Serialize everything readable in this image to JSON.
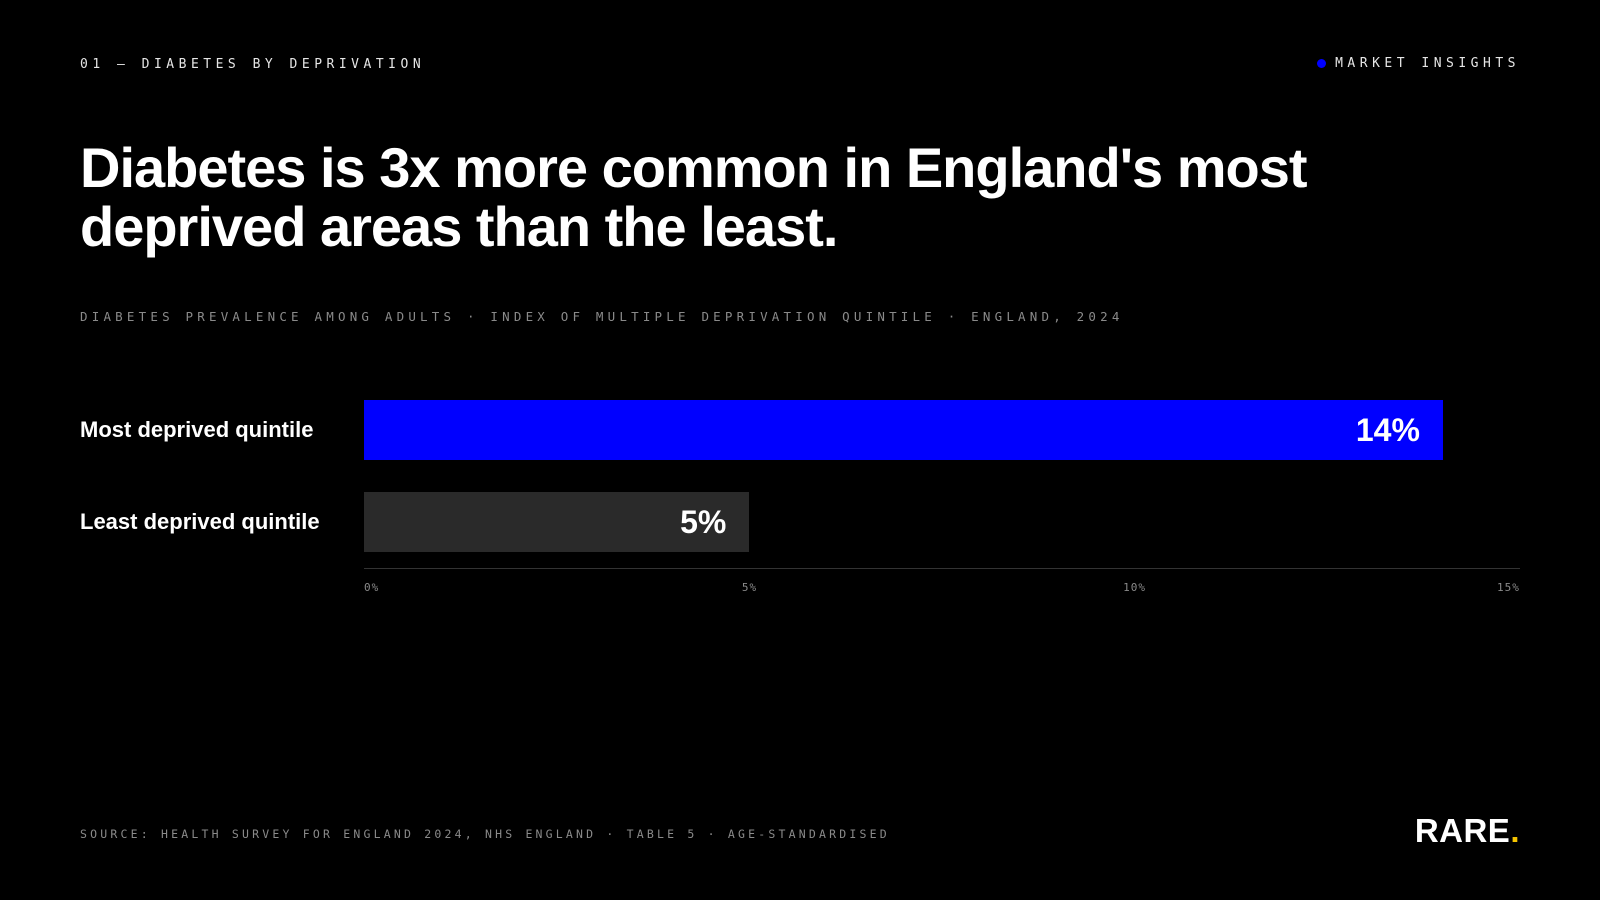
{
  "header": {
    "eyebrow": "01 — DIABETES BY DEPRIVATION",
    "tag": "MARKET INSIGHTS"
  },
  "headline": "Diabetes is 3x more common in England's most deprived areas than the least.",
  "subtitle": "DIABETES PREVALENCE AMONG ADULTS · INDEX OF MULTIPLE DEPRIVATION QUINTILE · ENGLAND, 2024",
  "chart_data": {
    "type": "bar",
    "orientation": "horizontal",
    "categories": [
      "Most deprived quintile",
      "Least deprived quintile"
    ],
    "values": [
      14,
      5
    ],
    "value_labels": [
      "14%",
      "5%"
    ],
    "xlim": [
      0,
      15
    ],
    "x_ticks": [
      0,
      5,
      10,
      15
    ],
    "x_tick_labels": [
      "0%",
      "5%",
      "10%",
      "15%"
    ],
    "grid": false,
    "legend": "none",
    "colors": [
      "#0000ff",
      "#2a2a2a"
    ]
  },
  "footer": {
    "source": "SOURCE: HEALTH SURVEY FOR ENGLAND 2024, NHS ENGLAND · TABLE 5 · AGE-STANDARDISED",
    "logo": "RARE",
    "logo_dot": "."
  },
  "colors": {
    "accent": "#0000ff",
    "logo_dot": "#f5c400",
    "background": "#000000"
  }
}
